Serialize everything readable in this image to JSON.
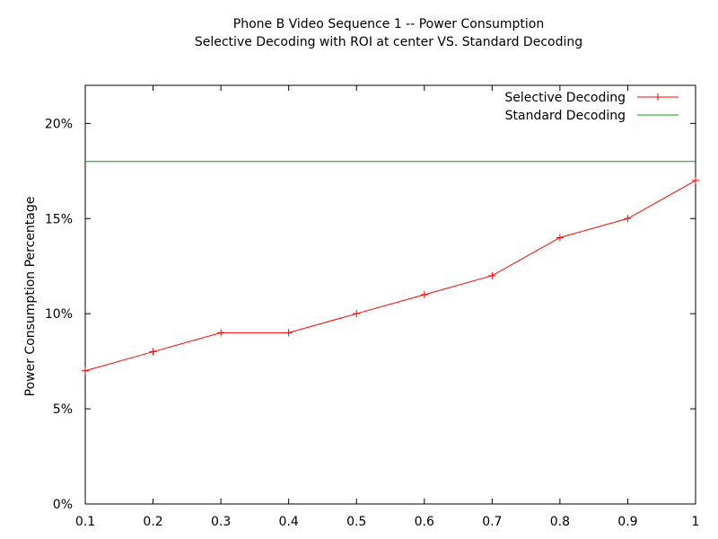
{
  "chart_data": {
    "type": "line",
    "title": "Phone B Video Sequence 1 -- Power Consumption",
    "subtitle": "Selective Decoding with ROI at center VS. Standard Decoding",
    "xlabel": "",
    "ylabel": "Power Consumption Percentage",
    "xlim": [
      0.1,
      1.0
    ],
    "ylim": [
      0,
      22
    ],
    "x_ticks": [
      0.1,
      0.2,
      0.3,
      0.4,
      0.5,
      0.6,
      0.7,
      0.8,
      0.9,
      1.0
    ],
    "x_tick_labels": [
      "0.1",
      "0.2",
      "0.3",
      "0.4",
      "0.5",
      "0.6",
      "0.7",
      "0.8",
      "0.9",
      "1"
    ],
    "y_ticks": [
      0,
      5,
      10,
      15,
      20
    ],
    "y_tick_labels": [
      "0%",
      "5%",
      "10%",
      "15%",
      "20%"
    ],
    "grid": false,
    "legend_position": "top-right",
    "series": [
      {
        "name": "Selective Decoding",
        "color": "#ff0000",
        "marker": "plus",
        "x": [
          0.1,
          0.2,
          0.3,
          0.4,
          0.5,
          0.6,
          0.7,
          0.8,
          0.9,
          1.0
        ],
        "values": [
          7,
          8,
          9,
          9,
          10,
          11,
          12,
          14,
          15,
          17
        ]
      },
      {
        "name": "Standard Decoding",
        "color": "#00a000",
        "marker": "none",
        "x": [
          0.1,
          1.0
        ],
        "values": [
          18,
          18
        ]
      }
    ]
  }
}
